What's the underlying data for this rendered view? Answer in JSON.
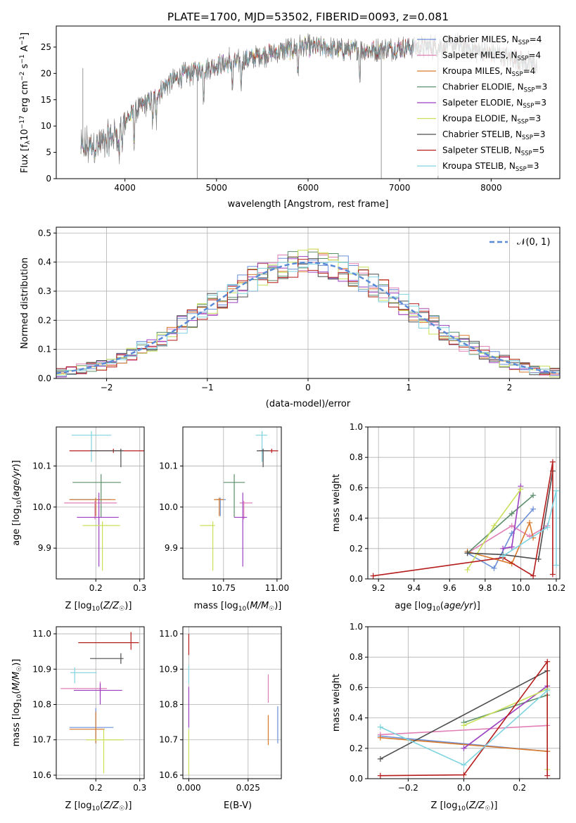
{
  "figure": {
    "title": "PLATE=1700, MJD=53502, FIBERID=0093, z=0.081"
  },
  "models": [
    {
      "name": "Chabrier MILES, N$_{SSP}$=4",
      "label_main": "Chabrier MILES, N",
      "label_sub": "SSP",
      "label_tail": "=4",
      "color": "#6a8fd8"
    },
    {
      "name": "Salpeter MILES",
      "label_main": "Salpeter MILES, N",
      "label_sub": "SSP",
      "label_tail": "=4",
      "color": "#e07fb6"
    },
    {
      "name": "Kroupa MILES",
      "label_main": "Kroupa MILES, N",
      "label_sub": "SSP",
      "label_tail": "=4",
      "color": "#d97a2b"
    },
    {
      "name": "Chabrier ELODIE",
      "label_main": "Chabrier ELODIE, N",
      "label_sub": "SSP",
      "label_tail": "=3",
      "color": "#5b8f6a"
    },
    {
      "name": "Salpeter ELODIE",
      "label_main": "Salpeter ELODIE, N",
      "label_sub": "SSP",
      "label_tail": "=3",
      "color": "#9b3fc0"
    },
    {
      "name": "Kroupa ELODIE",
      "label_main": "Kroupa ELODIE, N",
      "label_sub": "SSP",
      "label_tail": "=3",
      "color": "#c8e05a"
    },
    {
      "name": "Chabrier STELIB",
      "label_main": "Chabrier STELIB, N",
      "label_sub": "SSP",
      "label_tail": "=3",
      "color": "#4d4d4d"
    },
    {
      "name": "Salpeter STELIB",
      "label_main": "Salpeter STELIB, N",
      "label_sub": "SSP",
      "label_tail": "=5",
      "color": "#b51c1c"
    },
    {
      "name": "Kroupa STELIB",
      "label_main": "Kroupa STELIB, N",
      "label_sub": "SSP",
      "label_tail": "=3",
      "color": "#7fd3e0"
    }
  ],
  "chart_data": [
    {
      "id": "spectrum",
      "type": "line",
      "xlabel": "wavelength [Angstrom, rest frame]",
      "ylabel_main": "Flux [f",
      "ylabel_full": "Flux [fλ10⁻¹⁷ erg cm⁻² s⁻¹ A⁻¹]",
      "xlim": [
        3250,
        8750
      ],
      "ylim": [
        0,
        29
      ],
      "xticks": [
        4000,
        5000,
        6000,
        7000,
        8000
      ],
      "yticks": [
        0,
        5,
        10,
        15,
        20,
        25
      ],
      "grid": false,
      "legend": "right",
      "continuum": [
        [
          3520,
          5.5
        ],
        [
          3600,
          6
        ],
        [
          3700,
          6.5
        ],
        [
          3800,
          7
        ],
        [
          3900,
          8.5
        ],
        [
          4000,
          11
        ],
        [
          4100,
          12.5
        ],
        [
          4200,
          14
        ],
        [
          4300,
          15
        ],
        [
          4400,
          17
        ],
        [
          4500,
          18.5
        ],
        [
          4600,
          19.5
        ],
        [
          4700,
          20
        ],
        [
          4800,
          20.5
        ],
        [
          4900,
          21
        ],
        [
          5000,
          21.5
        ],
        [
          5100,
          21.8
        ],
        [
          5200,
          22
        ],
        [
          5300,
          22.5
        ],
        [
          5400,
          23
        ],
        [
          5500,
          23.5
        ],
        [
          5600,
          23.8
        ],
        [
          5700,
          24.2
        ],
        [
          5800,
          24.5
        ],
        [
          5900,
          25
        ],
        [
          6000,
          25
        ],
        [
          6100,
          25
        ],
        [
          6200,
          24.8
        ],
        [
          6300,
          24.6
        ],
        [
          6400,
          24.5
        ],
        [
          6500,
          24.5
        ],
        [
          6600,
          24.5
        ],
        [
          6700,
          24.4
        ],
        [
          6800,
          24.5
        ],
        [
          6900,
          24.6
        ],
        [
          7000,
          24.8
        ],
        [
          7100,
          25
        ],
        [
          7200,
          25
        ],
        [
          7300,
          25
        ],
        [
          7400,
          25
        ],
        [
          7500,
          25.3
        ],
        [
          7600,
          25.4
        ],
        [
          7700,
          25
        ],
        [
          7800,
          24.5
        ],
        [
          7900,
          24.2
        ],
        [
          8000,
          23.8
        ],
        [
          8100,
          23.5
        ],
        [
          8200,
          23
        ],
        [
          8300,
          22.5
        ],
        [
          8400,
          22
        ],
        [
          8500,
          21.5
        ]
      ]
    },
    {
      "id": "residuals",
      "type": "bar",
      "xlabel": "(data-model)/error",
      "ylabel": "Normed distribution",
      "xlim": [
        -2.5,
        2.5
      ],
      "ylim": [
        0,
        0.52
      ],
      "xticks": [
        -2,
        -1,
        0,
        1,
        2
      ],
      "yticks": [
        0.0,
        0.1,
        0.2,
        0.3,
        0.4,
        0.5
      ],
      "grid": true,
      "legend": "top-right",
      "legend_label": "𝒩(0, 1)",
      "legend_color": "#5b8ad6"
    },
    {
      "id": "Z-age",
      "type": "scatter",
      "xlabel": "Z [log₁₀(Z/Z☉)]",
      "ylabel": "age  [log₁₀(age/yr)]",
      "xlim": [
        0.11,
        0.31
      ],
      "ylim": [
        9.825,
        10.195
      ],
      "xticks": [
        0.2,
        0.3
      ],
      "yticks": [
        9.9,
        10.0,
        10.1
      ],
      "grid": true,
      "points": [
        {
          "model": 8,
          "x": 0.19,
          "xerr": [
            0.045,
            0.045
          ],
          "y": 10.175,
          "yerr": [
            0.065,
            0.01
          ]
        },
        {
          "model": 7,
          "x": 0.24,
          "xerr": [
            0.1,
            0.07
          ],
          "y": 10.137,
          "yerr": [
            0.005,
            0.005
          ]
        },
        {
          "model": 6,
          "x": 0.257,
          "xerr": [
            0.07,
            0.006
          ],
          "y": 10.137,
          "yerr": [
            0.04,
            0.005
          ]
        },
        {
          "model": 3,
          "x": 0.212,
          "xerr": [
            0.065,
            0.045
          ],
          "y": 10.06,
          "yerr": [
            0.085,
            0.02
          ]
        },
        {
          "model": 0,
          "x": 0.2,
          "xerr": [
            0.06,
            0.035
          ],
          "y": 10.018,
          "yerr": [
            0.04,
            0.005
          ]
        },
        {
          "model": 2,
          "x": 0.2,
          "xerr": [
            0.06,
            0.045
          ],
          "y": 10.018,
          "yerr": [
            0.04,
            0.005
          ]
        },
        {
          "model": 1,
          "x": 0.198,
          "xerr": [
            0.07,
            0.05
          ],
          "y": 10.01,
          "yerr": [
            0.04,
            0.005
          ]
        },
        {
          "model": 4,
          "x": 0.207,
          "xerr": [
            0.05,
            0.045
          ],
          "y": 9.975,
          "yerr": [
            0.12,
            0.06
          ]
        },
        {
          "model": 5,
          "x": 0.215,
          "xerr": [
            0.045,
            0.04
          ],
          "y": 9.955,
          "yerr": [
            0.11,
            0.01
          ]
        }
      ]
    },
    {
      "id": "mass-age",
      "type": "scatter",
      "xlabel": "mass [log₁₀(M/M☉)]",
      "ylabel": "",
      "xlim": [
        10.56,
        11.02
      ],
      "ylim": [
        9.825,
        10.195
      ],
      "xticks": [
        10.75,
        11.0
      ],
      "yticks": [
        9.9,
        10.0,
        10.1
      ],
      "grid": true,
      "points": [
        {
          "model": 8,
          "x": 10.93,
          "xerr": [
            0.03,
            0.025
          ],
          "y": 10.175,
          "yerr": [
            0.065,
            0.01
          ]
        },
        {
          "model": 7,
          "x": 10.975,
          "xerr": [
            0.06,
            0.03
          ],
          "y": 10.137,
          "yerr": [
            0.005,
            0.005
          ]
        },
        {
          "model": 6,
          "x": 10.935,
          "xerr": [
            0.03,
            0.03
          ],
          "y": 10.137,
          "yerr": [
            0.04,
            0.005
          ]
        },
        {
          "model": 3,
          "x": 10.8,
          "xerr": [
            0.05,
            0.05
          ],
          "y": 10.06,
          "yerr": [
            0.085,
            0.02
          ]
        },
        {
          "model": 0,
          "x": 10.735,
          "xerr": [
            0.02,
            0.025
          ],
          "y": 10.018,
          "yerr": [
            0.04,
            0.005
          ]
        },
        {
          "model": 2,
          "x": 10.73,
          "xerr": [
            0.025,
            0.02
          ],
          "y": 10.018,
          "yerr": [
            0.04,
            0.005
          ]
        },
        {
          "model": 1,
          "x": 10.845,
          "xerr": [
            0.02,
            0.04
          ],
          "y": 10.01,
          "yerr": [
            0.04,
            0.005
          ]
        },
        {
          "model": 4,
          "x": 10.84,
          "xerr": [
            0.04,
            0.02
          ],
          "y": 9.975,
          "yerr": [
            0.12,
            0.06
          ]
        },
        {
          "model": 5,
          "x": 10.7,
          "xerr": [
            0.06,
            0.01
          ],
          "y": 9.955,
          "yerr": [
            0.11,
            0.01
          ]
        }
      ]
    },
    {
      "id": "age-weight",
      "type": "line",
      "xlabel": "age  [log₁₀(age/yr)]",
      "ylabel": "mass weight",
      "xlim": [
        9.14,
        10.22
      ],
      "ylim": [
        0,
        1
      ],
      "xticks": [
        9.2,
        9.4,
        9.6,
        9.8,
        10.0,
        10.2
      ],
      "yticks": [
        0.0,
        0.2,
        0.4,
        0.6,
        0.8,
        1.0
      ],
      "grid": true,
      "series": [
        {
          "model": 0,
          "x": [
            9.7,
            9.85,
            9.95,
            10.07
          ],
          "y": [
            0.17,
            0.07,
            0.3,
            0.46
          ]
        },
        {
          "model": 1,
          "x": [
            9.7,
            9.95,
            10.05,
            10.15
          ],
          "y": [
            0.17,
            0.35,
            0.28,
            0.35
          ]
        },
        {
          "model": 2,
          "x": [
            9.7,
            9.95,
            10.05,
            10.07
          ],
          "y": [
            0.18,
            0.1,
            0.37,
            0.27
          ]
        },
        {
          "model": 3,
          "x": [
            9.7,
            9.95,
            10.07
          ],
          "y": [
            0.17,
            0.43,
            0.55
          ]
        },
        {
          "model": 4,
          "x": [
            9.9,
            9.95,
            10.0
          ],
          "y": [
            0.2,
            0.21,
            0.61
          ]
        },
        {
          "model": 5,
          "x": [
            9.7,
            9.85,
            10.0
          ],
          "y": [
            0.06,
            0.35,
            0.59
          ]
        },
        {
          "model": 6,
          "x": [
            9.7,
            9.9,
            10.1,
            10.18
          ],
          "y": [
            0.17,
            0.16,
            0.13,
            0.71
          ]
        },
        {
          "model": 7,
          "x": [
            9.17,
            9.9,
            10.07,
            10.18,
            10.18
          ],
          "y": [
            0.02,
            0.14,
            0.02,
            0.77,
            0.03
          ]
        },
        {
          "model": 8,
          "x": [
            9.9,
            10.15,
            10.2,
            10.2
          ],
          "y": [
            0.15,
            0.34,
            0.58,
            0.09
          ]
        }
      ]
    },
    {
      "id": "Z-mass",
      "type": "scatter",
      "xlabel": "Z [log₁₀(Z/Z☉)]",
      "ylabel": "mass [log₁₀(M/M☉)]",
      "xlim": [
        0.11,
        0.31
      ],
      "ylim": [
        10.59,
        11.02
      ],
      "xticks": [
        0.2,
        0.3
      ],
      "yticks": [
        10.6,
        10.7,
        10.8,
        10.9,
        11.0
      ],
      "grid": true,
      "points": [
        {
          "model": 7,
          "x": 0.28,
          "xerr": [
            0.12,
            0.018
          ],
          "y": 10.975,
          "yerr": [
            0.02,
            0.03
          ]
        },
        {
          "model": 6,
          "x": 0.257,
          "xerr": [
            0.07,
            0.006
          ],
          "y": 10.93,
          "yerr": [
            0.015,
            0.015
          ]
        },
        {
          "model": 8,
          "x": 0.152,
          "xerr": [
            0.01,
            0.05
          ],
          "y": 10.89,
          "yerr": [
            0.03,
            0.015
          ]
        },
        {
          "model": 1,
          "x": 0.21,
          "xerr": [
            0.09,
            0.015
          ],
          "y": 10.845,
          "yerr": [
            0.02,
            0.02
          ]
        },
        {
          "model": 4,
          "x": 0.21,
          "xerr": [
            0.06,
            0.05
          ],
          "y": 10.84,
          "yerr": [
            0.04,
            0.02
          ]
        },
        {
          "model": 0,
          "x": 0.2,
          "xerr": [
            0.06,
            0.04
          ],
          "y": 10.735,
          "yerr": [
            0.045,
            0.055
          ]
        },
        {
          "model": 2,
          "x": 0.2,
          "xerr": [
            0.06,
            0.02
          ],
          "y": 10.73,
          "yerr": [
            0.04,
            0.05
          ]
        },
        {
          "model": 5,
          "x": 0.218,
          "xerr": [
            0.04,
            0.045
          ],
          "y": 10.7,
          "yerr": [
            0.095,
            0.03
          ]
        }
      ]
    },
    {
      "id": "ebv-mass",
      "type": "scatter",
      "xlabel": "E(B-V)",
      "ylabel": "",
      "xlim": [
        -0.0025,
        0.039
      ],
      "ylim": [
        10.59,
        11.02
      ],
      "xticks": [
        0.0,
        0.025
      ],
      "yticks": [
        10.6,
        10.7,
        10.8,
        10.9,
        11.0
      ],
      "grid": true,
      "points": [
        {
          "model": 7,
          "x": 0.0,
          "xerr": [
            0,
            0
          ],
          "y": 10.97,
          "yerr": [
            0.03,
            0.03
          ]
        },
        {
          "model": 8,
          "x": 0.0,
          "xerr": [
            0,
            0
          ],
          "y": 10.89,
          "yerr": [
            0.03,
            0.02
          ]
        },
        {
          "model": 4,
          "x": 0.0,
          "xerr": [
            0,
            0
          ],
          "y": 10.8,
          "yerr": [
            0.065,
            0.05
          ]
        },
        {
          "model": 5,
          "x": 0.0,
          "xerr": [
            0,
            0
          ],
          "y": 10.66,
          "yerr": [
            0.06,
            0.07
          ]
        },
        {
          "model": 1,
          "x": 0.0335,
          "xerr": [
            0,
            0
          ],
          "y": 10.845,
          "yerr": [
            0.04,
            0.04
          ]
        },
        {
          "model": 2,
          "x": 0.0335,
          "xerr": [
            0,
            0
          ],
          "y": 10.72,
          "yerr": [
            0.035,
            0.05
          ]
        },
        {
          "model": 0,
          "x": 0.0375,
          "xerr": [
            0,
            0
          ],
          "y": 10.74,
          "yerr": [
            0.05,
            0.055
          ]
        }
      ]
    },
    {
      "id": "Z-weight",
      "type": "line",
      "xlabel": "Z [log₁₀(Z/Z☉)]",
      "ylabel": "mass weight",
      "xlim": [
        -0.345,
        0.345
      ],
      "ylim": [
        0,
        1
      ],
      "xticks": [
        -0.2,
        0.0,
        0.2
      ],
      "yticks": [
        0.0,
        0.2,
        0.4,
        0.6,
        0.8,
        1.0
      ],
      "grid": true,
      "series": [
        {
          "model": 0,
          "x": [
            -0.3,
            0.3
          ],
          "y": [
            0.28,
            0.18
          ]
        },
        {
          "model": 1,
          "x": [
            -0.3,
            0.3
          ],
          "y": [
            0.29,
            0.35
          ]
        },
        {
          "model": 2,
          "x": [
            -0.3,
            0.3
          ],
          "y": [
            0.27,
            0.18
          ]
        },
        {
          "model": 3,
          "x": [
            0.0,
            0.3
          ],
          "y": [
            0.37,
            0.55
          ]
        },
        {
          "model": 4,
          "x": [
            0.0,
            0.3
          ],
          "y": [
            0.2,
            0.61
          ]
        },
        {
          "model": 5,
          "x": [
            0.0,
            0.3,
            0.3
          ],
          "y": [
            0.35,
            0.59,
            0.06
          ]
        },
        {
          "model": 6,
          "x": [
            -0.3,
            0.3
          ],
          "y": [
            0.13,
            0.71
          ]
        },
        {
          "model": 7,
          "x": [
            -0.3,
            0.0,
            0.3,
            0.3
          ],
          "y": [
            0.02,
            0.025,
            0.77,
            0.02
          ]
        },
        {
          "model": 8,
          "x": [
            -0.3,
            0.0,
            0.3
          ],
          "y": [
            0.34,
            0.09,
            0.58
          ]
        }
      ]
    }
  ]
}
